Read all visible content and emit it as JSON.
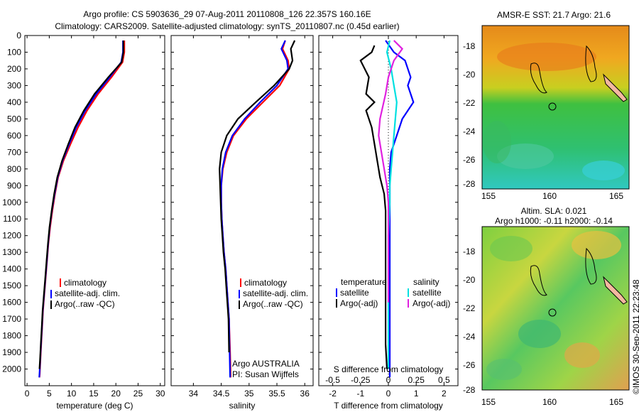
{
  "header": {
    "line1": "Argo profile: CS 5903636_29 07-Aug-2011 20110808_126 22.357S 160.16E",
    "line2": "Climatology: CARS2009. Satellite-adjusted climatology: synTS_20110807.nc (0.45d earlier)"
  },
  "panels": {
    "temperature": {
      "xlabel": "temperature (deg C)"
    },
    "salinity": {
      "xlabel": "salinity",
      "note1": "Argo AUSTRALIA",
      "note2": "PI: Susan Wijffels"
    },
    "difference": {
      "xlabel_top": "S difference from climatology",
      "xlabel_bottom": "T difference from climatology"
    }
  },
  "legend_profiles": [
    "climatology",
    "satellite-adj. clim.",
    "Argo(..raw -QC)"
  ],
  "legend_diff": {
    "temperature_title": "temperature",
    "salinity_title": "salinity",
    "entries": [
      "satellite",
      "Argo(-adj)"
    ]
  },
  "maps": {
    "sst_title": "AMSR-E SST: 21.7 Argo: 21.6",
    "sla_title1": "Altim. SLA: 0.021",
    "sla_title2": "Argo h1000: -0.11 h2000: -0.14",
    "lat_ticks": [
      "-18",
      "-20",
      "-22",
      "-24",
      "-26",
      "-28"
    ],
    "lon_ticks": [
      "155",
      "160",
      "165"
    ]
  },
  "credit": "©IMOS 30-Sep-2011 22:23:48",
  "colors": {
    "climatology": "#ff0000",
    "satellite": "#0000ff",
    "argo": "#000000",
    "sat_salinity": "#00e0e0",
    "argo_salinity": "#e020e0"
  },
  "chart_data": [
    {
      "type": "line",
      "xlabel": "temperature (deg C)",
      "ylabel": "",
      "xlim": [
        -0.5,
        31
      ],
      "ylim": [
        2100,
        0
      ],
      "xticks": [
        0,
        5,
        10,
        15,
        20,
        25,
        30
      ],
      "yticks": [
        0,
        100,
        200,
        300,
        400,
        500,
        600,
        700,
        800,
        900,
        1000,
        1100,
        1200,
        1300,
        1400,
        1500,
        1600,
        1700,
        1800,
        1900,
        2000
      ],
      "series": [
        {
          "name": "climatology",
          "x": [
            21.9,
            21.9,
            21.5,
            19,
            16,
            13.5,
            11.5,
            9.8,
            8.2,
            7,
            6.3,
            5.7,
            5.2,
            4.8,
            4.5,
            4.2,
            3.9,
            3.6,
            3.4,
            3.2,
            3.1,
            3.0,
            2.9,
            2.85,
            2.8
          ],
          "y": [
            30,
            100,
            160,
            250,
            350,
            450,
            550,
            650,
            750,
            850,
            950,
            1050,
            1150,
            1250,
            1350,
            1450,
            1550,
            1650,
            1750,
            1850,
            1900,
            1950,
            2000,
            2030,
            2050
          ]
        },
        {
          "name": "satellite-adj. clim.",
          "x": [
            21.6,
            21.6,
            21.2,
            18.6,
            15.6,
            13.1,
            11.1,
            9.5,
            8.0,
            6.9,
            6.2,
            5.6,
            5.1,
            4.75,
            4.45,
            4.15,
            3.85,
            3.55,
            3.35,
            3.15,
            3.05,
            2.95,
            2.85,
            2.8,
            2.75
          ],
          "y": [
            30,
            100,
            160,
            250,
            350,
            450,
            550,
            650,
            750,
            850,
            950,
            1050,
            1150,
            1250,
            1350,
            1450,
            1550,
            1650,
            1750,
            1850,
            1900,
            1950,
            2000,
            2030,
            2050
          ]
        },
        {
          "name": "Argo(..raw -QC)",
          "x": [
            21.7,
            21.7,
            21.3,
            18.3,
            15.2,
            12.8,
            10.8,
            9.3,
            7.9,
            6.8,
            6.1,
            5.55,
            5.05,
            4.7,
            4.4,
            4.1,
            3.8,
            3.5,
            3.3,
            3.1,
            3.0,
            2.9,
            2.8
          ],
          "y": [
            30,
            100,
            160,
            250,
            350,
            450,
            550,
            650,
            750,
            850,
            950,
            1050,
            1150,
            1250,
            1350,
            1450,
            1550,
            1650,
            1750,
            1850,
            1900,
            1950,
            2000
          ]
        }
      ]
    },
    {
      "type": "line",
      "xlabel": "salinity",
      "ylabel": "",
      "xlim": [
        33.6,
        36.15
      ],
      "ylim": [
        2100,
        0
      ],
      "xticks": [
        34,
        34.5,
        35,
        35.5,
        36
      ],
      "series": [
        {
          "name": "climatology",
          "x": [
            35.65,
            35.6,
            35.7,
            35.72,
            35.55,
            35.25,
            34.95,
            34.72,
            34.6,
            34.53,
            34.5,
            34.5,
            34.51,
            34.53,
            34.55,
            34.58,
            34.6,
            34.62,
            34.64,
            34.66,
            34.67
          ],
          "y": [
            30,
            80,
            150,
            200,
            300,
            400,
            500,
            600,
            700,
            800,
            900,
            1000,
            1100,
            1200,
            1300,
            1400,
            1500,
            1600,
            1700,
            1900,
            2050
          ]
        },
        {
          "name": "satellite-adj. clim.",
          "x": [
            35.65,
            35.58,
            35.68,
            35.7,
            35.5,
            35.2,
            34.92,
            34.7,
            34.58,
            34.52,
            34.5,
            34.5,
            34.51,
            34.53,
            34.55,
            34.58,
            34.6,
            34.62,
            34.64,
            34.65,
            34.66
          ],
          "y": [
            30,
            80,
            150,
            200,
            300,
            400,
            500,
            600,
            700,
            800,
            900,
            1000,
            1100,
            1200,
            1300,
            1400,
            1500,
            1600,
            1700,
            1900,
            2050
          ]
        },
        {
          "name": "Argo(..raw -QC)",
          "x": [
            35.82,
            35.75,
            35.78,
            35.72,
            35.45,
            35.12,
            34.8,
            34.6,
            34.5,
            34.47,
            34.48,
            34.49,
            34.5,
            34.52,
            34.54,
            34.57,
            34.59,
            34.61,
            34.63,
            34.64
          ],
          "y": [
            30,
            80,
            150,
            200,
            300,
            400,
            500,
            600,
            700,
            800,
            900,
            1000,
            1100,
            1200,
            1300,
            1400,
            1500,
            1600,
            1700,
            1900
          ]
        }
      ]
    },
    {
      "type": "line",
      "xlabel": "T difference from climatology",
      "xlabel_top": "S difference from climatology",
      "xlim": [
        -2.5,
        2.5
      ],
      "ylim": [
        2100,
        0
      ],
      "xticks": [
        -2,
        -1,
        0,
        1,
        2
      ],
      "xticks_top": [
        "-0.5",
        "-0.25",
        "0",
        "0.25",
        "0.5"
      ],
      "series": [
        {
          "name": "temperature satellite",
          "x": [
            -0.1,
            0.2,
            0.6,
            0.8,
            0.7,
            0.9,
            0.5,
            0.3,
            0.1,
            0.05,
            0.05,
            0.05,
            0.05,
            0.05,
            0.05,
            0.05,
            0.05,
            0.05,
            0.05,
            0.05
          ],
          "y": [
            30,
            100,
            150,
            250,
            300,
            400,
            500,
            600,
            700,
            800,
            900,
            1000,
            1200,
            1400,
            1500,
            1600,
            1700,
            1800,
            1900,
            2050
          ]
        },
        {
          "name": "temperature Argo(-adj)",
          "x": [
            -0.5,
            -0.6,
            -1.0,
            -0.7,
            -0.8,
            -0.5,
            -0.8,
            -0.6,
            -0.5,
            -0.4,
            -0.3,
            -0.15,
            -0.1,
            -0.1,
            -0.1,
            -0.1,
            -0.1,
            -0.1,
            -0.05
          ],
          "y": [
            60,
            100,
            150,
            250,
            350,
            400,
            450,
            550,
            650,
            750,
            850,
            950,
            1050,
            1200,
            1400,
            1600,
            1750,
            1850,
            2000
          ]
        },
        {
          "name": "salinity satellite",
          "x": [
            0.05,
            -0.05,
            0.1,
            0.2,
            0.3,
            0.25,
            0.2,
            0.15,
            0.1,
            0.05,
            0.05,
            0.0,
            0.0,
            0.0,
            0.0,
            0.0
          ],
          "y": [
            30,
            100,
            200,
            300,
            400,
            500,
            600,
            700,
            800,
            900,
            1000,
            1200,
            1400,
            1600,
            1800,
            2000
          ]
        },
        {
          "name": "salinity Argo(-adj)",
          "x": [
            0.2,
            0.5,
            0.2,
            0.0,
            -0.1,
            -0.3,
            -0.35,
            -0.25,
            -0.15,
            -0.05,
            0.0,
            0.0,
            0.0,
            0.0
          ],
          "y": [
            30,
            80,
            150,
            250,
            350,
            500,
            600,
            700,
            800,
            900,
            1000,
            1200,
            1400,
            1600
          ]
        }
      ]
    }
  ]
}
